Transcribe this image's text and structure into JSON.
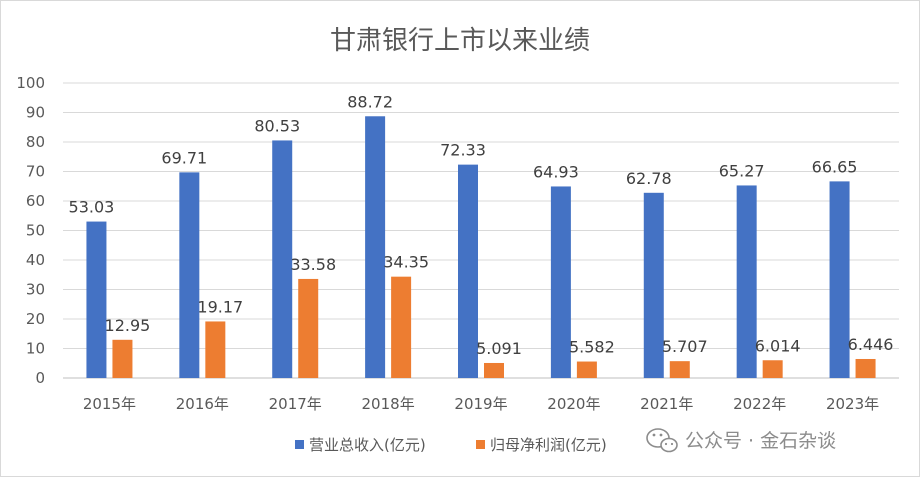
{
  "chart_data": {
    "type": "bar",
    "title": "甘肃银行上市以来业绩",
    "xlabel": "",
    "ylabel": "",
    "categories": [
      "2015年",
      "2016年",
      "2017年",
      "2018年",
      "2019年",
      "2020年",
      "2021年",
      "2022年",
      "2023年"
    ],
    "series": [
      {
        "name": "营业总收入(亿元)",
        "color": "#4472C4",
        "values": [
          53.03,
          69.71,
          80.53,
          88.72,
          72.33,
          64.93,
          62.78,
          65.27,
          66.65
        ],
        "labels": [
          "53.03",
          "69.71",
          "80.53",
          "88.72",
          "72.33",
          "64.93",
          "62.78",
          "65.27",
          "66.65"
        ]
      },
      {
        "name": "归母净利润(亿元)",
        "color": "#ED7D31",
        "values": [
          12.95,
          19.17,
          33.58,
          34.35,
          5.091,
          5.582,
          5.707,
          6.014,
          6.446
        ],
        "labels": [
          "12.95",
          "19.17",
          "33.58",
          "34.35",
          "5.091",
          "5.582",
          "5.707",
          "6.014",
          "6.446"
        ]
      }
    ],
    "ylim": [
      0,
      100
    ],
    "yticks": [
      0,
      10,
      20,
      30,
      40,
      50,
      60,
      70,
      80,
      90,
      100
    ],
    "grid": true,
    "legend_position": "bottom"
  },
  "watermark": {
    "text": "公众号 · 金石杂谈",
    "icon": "wechat-icon"
  }
}
